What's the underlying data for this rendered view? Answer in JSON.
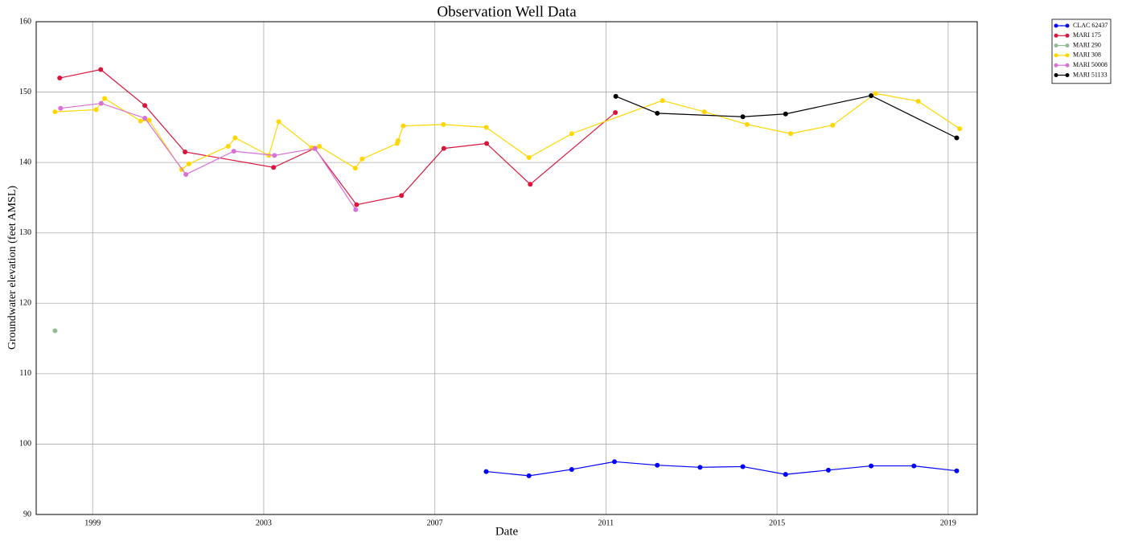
{
  "chart_data": {
    "type": "line",
    "title": "Observation Well Data",
    "x_label": "Date",
    "y_label": "Groundwater elevation (feet AMSL)",
    "xlim": [
      1997.68,
      2019.68
    ],
    "xticks": [
      1999,
      2003,
      2007,
      2011,
      2015,
      2019
    ],
    "ylim": [
      90,
      160
    ],
    "yticks": [
      90,
      100,
      110,
      120,
      130,
      140,
      150,
      160
    ],
    "grid": true,
    "legend": "outside-top-right",
    "series": [
      {
        "name": "CLAC 62437",
        "color": "#0000ff",
        "x": [
          2008.2,
          2009.2,
          2010.2,
          2011.2,
          2012.2,
          2013.2,
          2014.2,
          2015.2,
          2016.2,
          2017.2,
          2018.2,
          2019.2
        ],
        "values": [
          96.1,
          95.5,
          96.4,
          97.5,
          97.0,
          96.7,
          96.8,
          95.7,
          96.3,
          96.9,
          96.9,
          96.2
        ]
      },
      {
        "name": "MARI 175",
        "color": "#dc143c",
        "x": [
          1998.23,
          1999.19,
          2000.22,
          2001.16,
          2003.23,
          2004.19,
          2005.17,
          2006.22,
          2007.21,
          2008.21,
          2009.23,
          2011.22
        ],
        "values": [
          152.0,
          153.2,
          148.1,
          141.5,
          139.3,
          142.0,
          134.0,
          135.3,
          142.0,
          142.7,
          136.9,
          147.1
        ]
      },
      {
        "name": "MARI 290",
        "color": "#8fbc8f",
        "x": [
          1998.12
        ],
        "values": [
          116.1
        ]
      },
      {
        "name": "MARI 308",
        "color": "#ffd700",
        "x": [
          1998.12,
          1999.08,
          1999.28,
          2000.12,
          2000.32,
          2001.08,
          2001.25,
          2002.17,
          2002.33,
          2003.12,
          2003.35,
          2004.12,
          2004.3,
          2005.14,
          2005.3,
          2006.12,
          2006.14,
          2006.26,
          2007.2,
          2008.2,
          2009.2,
          2010.2,
          2012.32,
          2013.3,
          2014.3,
          2015.32,
          2016.3,
          2017.3,
          2018.3,
          2019.27
        ],
        "values": [
          147.2,
          147.5,
          149.1,
          145.9,
          146.0,
          139.0,
          139.8,
          142.3,
          143.5,
          141.0,
          145.8,
          142.1,
          142.3,
          139.2,
          140.5,
          142.7,
          143.1,
          145.2,
          145.4,
          145.0,
          140.7,
          144.1,
          148.8,
          147.2,
          145.4,
          144.1,
          145.3,
          149.8,
          148.7,
          144.8
        ]
      },
      {
        "name": "MARI 50008",
        "color": "#da70d6",
        "x": [
          1998.25,
          1999.2,
          2000.22,
          2001.18,
          2002.3,
          2003.25,
          2004.2,
          2005.15
        ],
        "values": [
          147.7,
          148.4,
          146.3,
          138.3,
          141.6,
          141.0,
          142.0,
          133.3
        ]
      },
      {
        "name": "MARI 51133",
        "color": "#000000",
        "x": [
          2011.23,
          2012.2,
          2014.2,
          2015.2,
          2017.2,
          2019.2
        ],
        "values": [
          149.4,
          147.0,
          146.5,
          146.9,
          149.5,
          143.5
        ]
      }
    ]
  }
}
